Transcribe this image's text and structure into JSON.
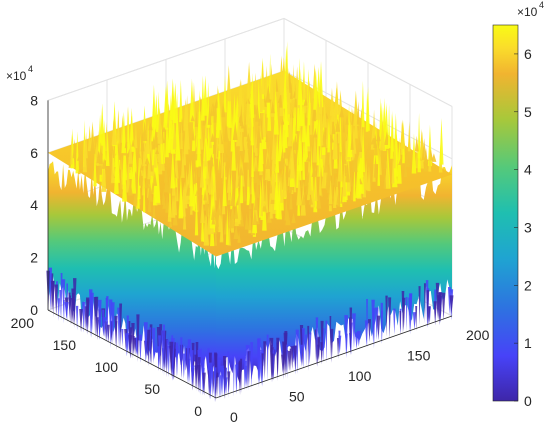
{
  "chart_data": {
    "type": "surface",
    "title": "",
    "x": {
      "ticks": [
        0,
        50,
        100,
        150,
        200
      ],
      "range": [
        0,
        200
      ]
    },
    "y": {
      "ticks": [
        0,
        50,
        100,
        150,
        200
      ],
      "range": [
        0,
        200
      ]
    },
    "z": {
      "ticks": [
        0,
        2,
        4,
        6,
        8
      ],
      "range": [
        0,
        8
      ],
      "exponent_label": "×10",
      "exponent": "4"
    },
    "colorbar": {
      "ticks": [
        0,
        1,
        2,
        3,
        4,
        5,
        6
      ],
      "range": [
        0,
        6.5
      ],
      "exponent_label": "×10",
      "exponent": "4"
    },
    "surface": {
      "shape": "plateau with steep noisy sides",
      "plateau_level": 6.0,
      "plateau_noise_max": 7.6,
      "edge_min": 0.0,
      "units_multiplier": 10000
    },
    "colormap": [
      "#3e26a8",
      "#4743f8",
      "#2d74e0",
      "#1fa4d1",
      "#1fbfb0",
      "#54c97b",
      "#a8c83a",
      "#f1b430",
      "#fadd2b",
      "#f9fb15"
    ],
    "grid": true
  }
}
